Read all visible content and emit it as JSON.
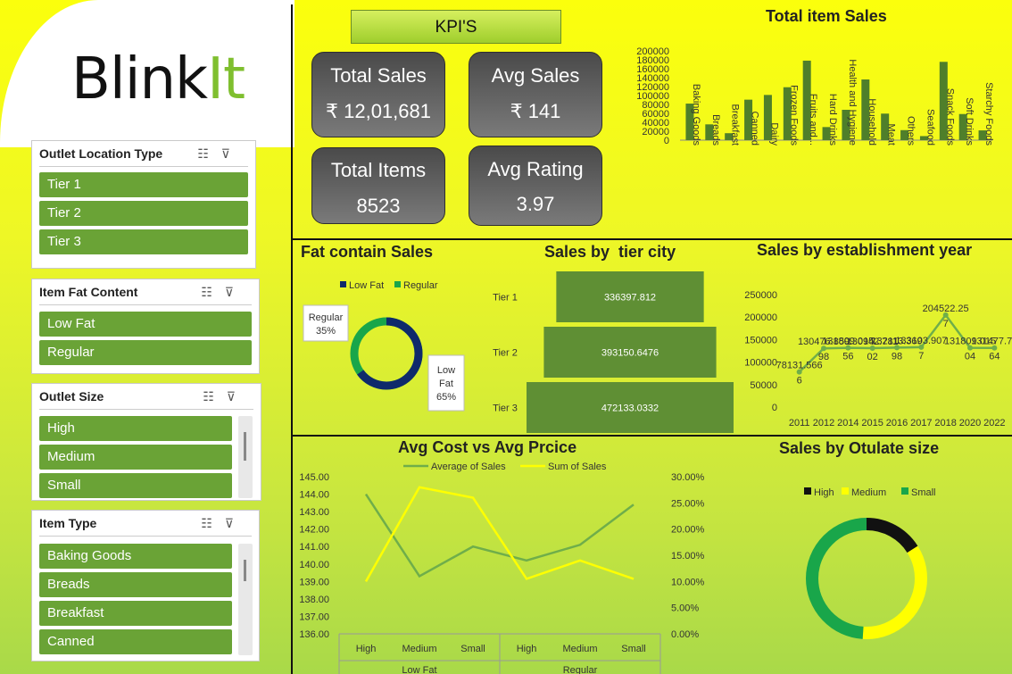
{
  "brand": {
    "name_part1": "Blink",
    "name_part2": "It"
  },
  "slicers": [
    {
      "title": "Outlet Location Type",
      "items": [
        "Tier 1",
        "Tier 2",
        "Tier 3"
      ]
    },
    {
      "title": "Item Fat Content",
      "items": [
        "Low Fat",
        "Regular"
      ]
    },
    {
      "title": "Outlet Size",
      "items": [
        "High",
        "Medium",
        "Small"
      ]
    },
    {
      "title": "Item Type",
      "items": [
        "Baking Goods",
        "Breads",
        "Breakfast",
        "Canned"
      ]
    }
  ],
  "slicer_icons": {
    "multi_select": "multi-select-icon",
    "clear_filter": "clear-filter-icon"
  },
  "kpi": {
    "title": "KPI'S",
    "cards": [
      {
        "label": "Total Sales",
        "value": "₹ 12,01,681"
      },
      {
        "label": "Avg Sales",
        "value": "₹ 141"
      },
      {
        "label": "Total Items",
        "value": "8523"
      },
      {
        "label": "Avg Rating",
        "value": "3.97"
      }
    ]
  },
  "colors": {
    "dark_green": "#4f7f2a",
    "mid_green": "#5f8f34",
    "navy": "#0f2a6b",
    "green": "#19a64a",
    "yellow": "#ffff00",
    "black": "#111111"
  },
  "chart_data": [
    {
      "type": "bar",
      "title": "Total item Sales",
      "categories": [
        "Baking Goods",
        "Breads",
        "Breakfast",
        "Canned",
        "Dairy",
        "Frozen Foods",
        "Fruits and...",
        "Hard Drinks",
        "Health and Hygiene",
        "Household",
        "Meat",
        "Others",
        "Seafood",
        "Snack Foods",
        "Soft Drinks",
        "Starchy Foods"
      ],
      "values": [
        81894,
        35380,
        15597,
        90706,
        101276,
        118558,
        178124,
        29334,
        68025,
        135976,
        59449,
        22451,
        9078,
        175434,
        58515,
        21880
      ],
      "yticks": [
        "200000",
        "180000",
        "160000",
        "140000",
        "120000",
        "100000",
        "80000",
        "60000",
        "40000",
        "20000",
        "0"
      ],
      "ylim": [
        0,
        200000
      ]
    },
    {
      "type": "pie",
      "title": "Fat contain Sales",
      "legend": [
        "Low Fat",
        "Regular"
      ],
      "values": [
        65,
        35
      ],
      "labels": [
        {
          "name": "Regular",
          "pct": "35%"
        },
        {
          "name1": "Low",
          "name2": "Fat",
          "pct": "65%"
        }
      ]
    },
    {
      "type": "bar",
      "title": "Sales by  tier city",
      "categories": [
        "Tier 1",
        "Tier 2",
        "Tier 3"
      ],
      "values": [
        336397.812,
        393150.6476,
        472133.0332
      ],
      "value_labels": [
        "336397.812",
        "393150.6476",
        "472133.0332"
      ]
    },
    {
      "type": "line",
      "title": "Sales by establishment year",
      "x": [
        "2011",
        "2012",
        "2014",
        "2015",
        "2016",
        "2017",
        "2018",
        "2020",
        "2022"
      ],
      "values": [
        78131.566,
        130476.86,
        131809.02,
        130942.78,
        132113.37,
        133103.9,
        204522.257,
        131809.02,
        131477.77
      ],
      "yticks": [
        "250000",
        "200000",
        "150000",
        "100000",
        "50000",
        "0"
      ],
      "ylim": [
        0,
        250000
      ],
      "point_labels": [
        [
          "78131.566",
          "6"
        ],
        [
          "130476.859",
          "98"
        ],
        [
          "131809.015",
          "56"
        ],
        [
          "130942.781",
          "02"
        ],
        [
          "132113.369",
          "98"
        ],
        [
          "133103.907",
          "7"
        ],
        [
          "204522.25",
          "7"
        ],
        [
          "131809.015",
          "04"
        ],
        [
          "131477.77",
          "64"
        ]
      ]
    },
    {
      "type": "line",
      "title": "Avg Cost vs Avg Prcice",
      "legend": [
        "Average of Sales",
        "Sum of Sales"
      ],
      "categories": [
        "High",
        "Medium",
        "Small",
        "High",
        "Medium",
        "Small"
      ],
      "groups": [
        "Low Fat",
        "Regular"
      ],
      "series": [
        {
          "name": "Average of Sales",
          "values": [
            144.0,
            139.3,
            141.0,
            140.2,
            141.1,
            143.4
          ],
          "axis": "left"
        },
        {
          "name": "Sum of Sales",
          "values": [
            10.0,
            28.0,
            26.0,
            10.5,
            14.0,
            10.5
          ],
          "axis": "right"
        }
      ],
      "yticks_left": [
        "145.00",
        "144.00",
        "143.00",
        "142.00",
        "141.00",
        "140.00",
        "139.00",
        "138.00",
        "137.00",
        "136.00"
      ],
      "ylim_left": [
        136,
        145
      ],
      "yticks_right": [
        "30.00%",
        "25.00%",
        "20.00%",
        "15.00%",
        "10.00%",
        "5.00%",
        "0.00%"
      ],
      "ylim_right": [
        0,
        30
      ]
    },
    {
      "type": "pie",
      "title": "Sales by Otulate size",
      "legend": [
        "High",
        "Medium",
        "Small"
      ],
      "values": [
        16,
        35,
        49
      ]
    }
  ]
}
